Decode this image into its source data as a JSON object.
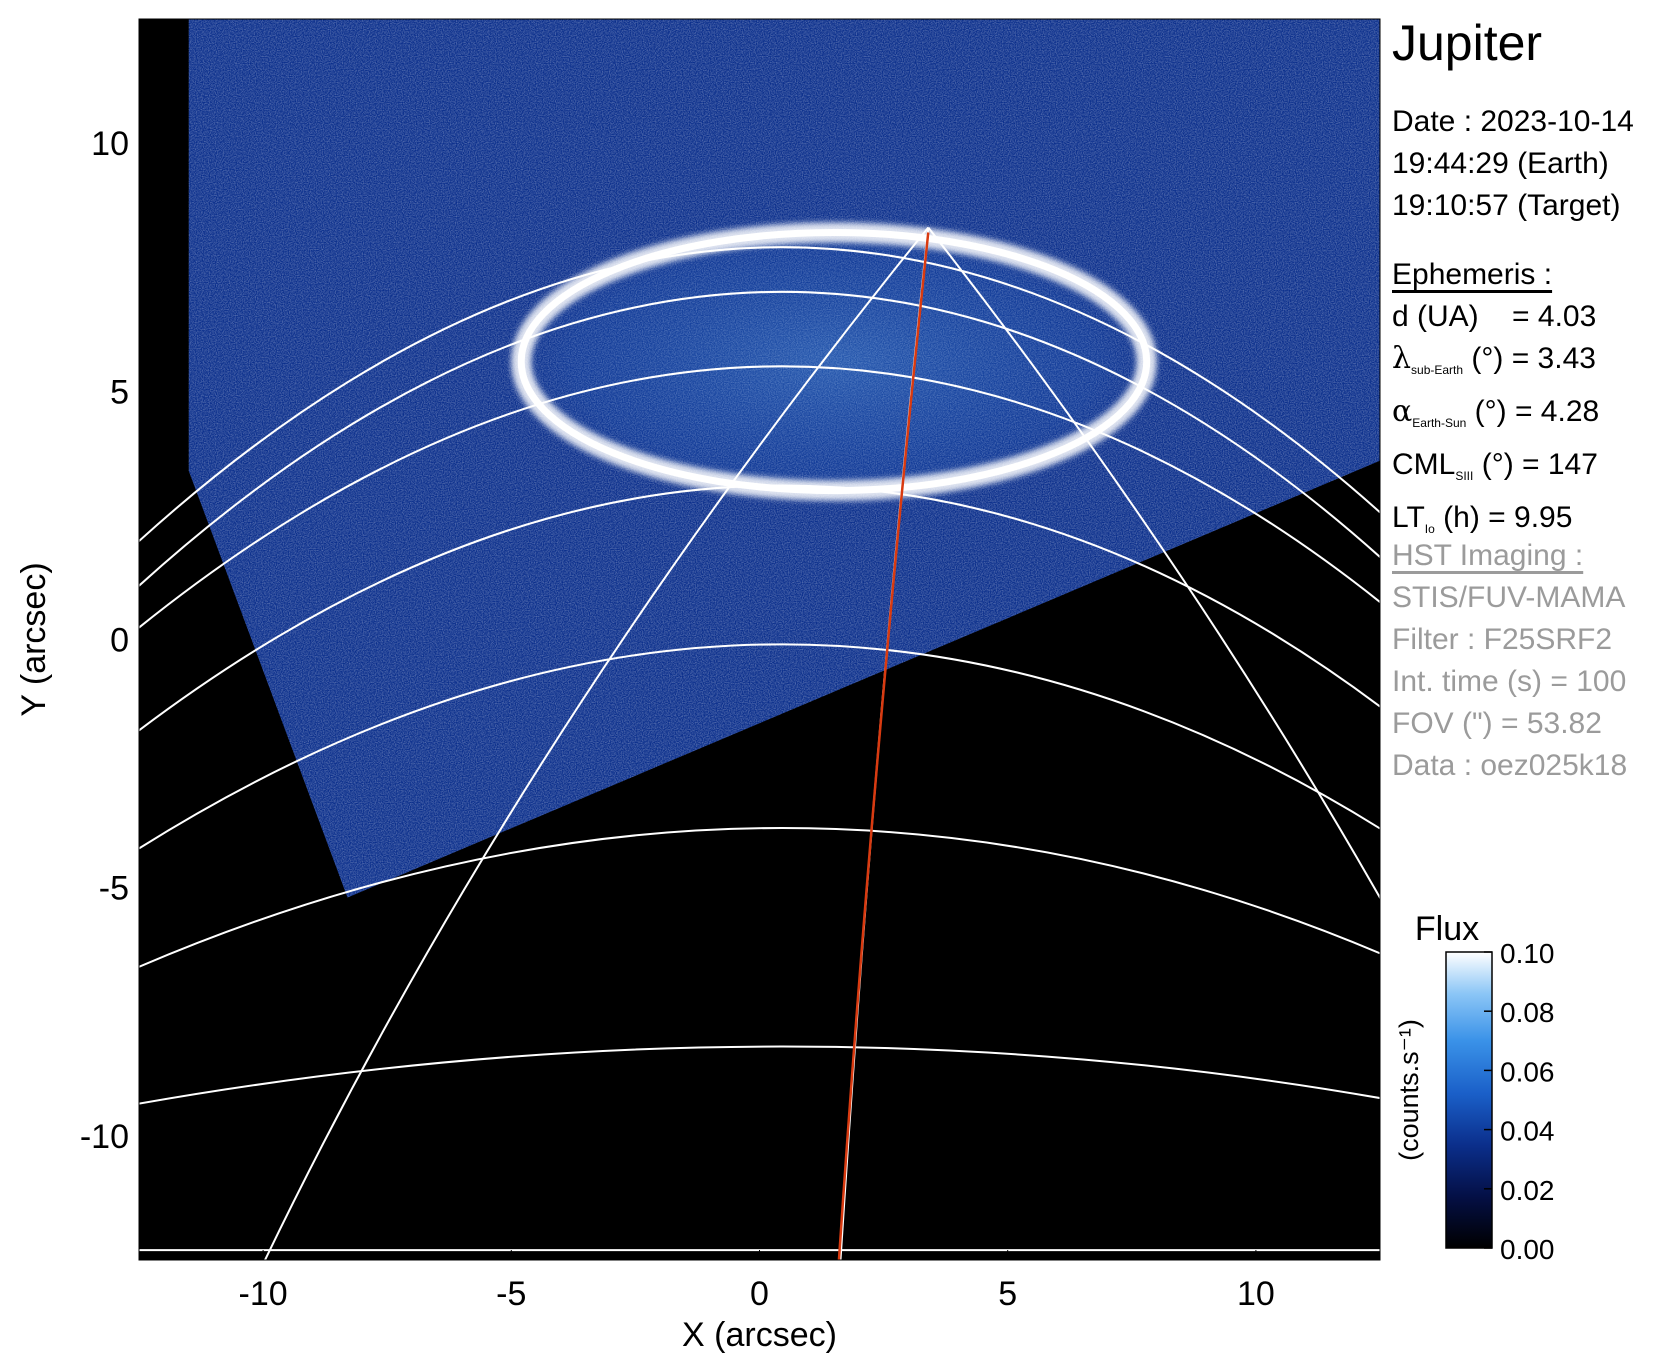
{
  "planet": "Jupiter",
  "date": {
    "date_line": "Date : 2023-10-14",
    "earth_time": "19:44:29 (Earth)",
    "target_time": "19:10:57 (Target)"
  },
  "ephemeris": {
    "header": "Ephemeris :",
    "d_label": "d (UA)",
    "d_value": "= 4.03",
    "lambda_sub": "sub-Earth",
    "lambda_rest": "(°) = 3.43",
    "alpha_sub": "Earth-Sun",
    "alpha_rest": "(°) = 4.28",
    "cml_label": "CML",
    "cml_sub": "SIII",
    "cml_rest": "(°) = 147",
    "lt_label": "LT",
    "lt_sub": "Io",
    "lt_rest": "(h) = 9.95"
  },
  "hst": {
    "header": "HST Imaging :",
    "instrument": "STIS/FUV-MAMA",
    "filter": "Filter : F25SRF2",
    "int_time": "Int. time (s) = 100",
    "fov": "FOV (\") = 53.82",
    "data_id": "Data : oez025k18"
  },
  "colors": {
    "background": "#000000",
    "grid": "#ffffff",
    "highlight_meridian": "#d93a10",
    "colormap": [
      "#000000",
      "#040f44",
      "#0b2f8c",
      "#1a5fc8",
      "#3a92e8",
      "#8cc6f6",
      "#ffffff"
    ]
  },
  "chart_data": {
    "type": "heatmap",
    "title": "",
    "xlabel": "X (arcsec)",
    "ylabel": "Y (arcsec)",
    "xlim": [
      -12.5,
      12.5
    ],
    "ylim": [
      -12.5,
      12.5
    ],
    "x_ticks": [
      -10,
      -5,
      0,
      5,
      10
    ],
    "y_ticks": [
      -10,
      -5,
      0,
      5,
      10
    ],
    "x_tick_labels": [
      "-10",
      "-5",
      "0",
      "5",
      "10"
    ],
    "y_tick_labels": [
      "-10",
      "-5",
      "0",
      "5",
      "10"
    ],
    "colorbar": {
      "title": "Flux",
      "label": "(counts.s⁻¹)",
      "range": [
        0.0,
        0.1
      ],
      "ticks": [
        0.0,
        0.02,
        0.04,
        0.06,
        0.08,
        0.1
      ],
      "tick_labels": [
        "0.00",
        "0.02",
        "0.04",
        "0.06",
        "0.08",
        "0.10"
      ]
    },
    "image_footprint": [
      [
        -8.3,
        -5.2
      ],
      [
        12.5,
        3.6
      ],
      [
        12.5,
        12.5
      ],
      [
        -11.5,
        12.5
      ],
      [
        -11.5,
        3.4
      ]
    ],
    "auroral_oval": {
      "center": [
        1.5,
        5.6
      ],
      "radii": [
        6.3,
        2.6
      ],
      "flux": 0.1
    },
    "latitude_circles": [
      {
        "y0": -12.3,
        "curve": 0.0
      },
      {
        "y0": -8.2,
        "curve": 0.07
      },
      {
        "y0": -3.8,
        "curve": 0.17
      },
      {
        "y0": -0.1,
        "curve": 0.25
      },
      {
        "y0": 3.1,
        "curve": 0.3
      },
      {
        "y0": 5.5,
        "curve": 0.32
      },
      {
        "y0": 7.0,
        "curve": 0.36
      },
      {
        "y0": 7.9,
        "curve": 0.36
      }
    ],
    "meridians_bottom_x": [
      -10.2,
      1.6,
      16.5
    ],
    "meridian_top_x": 3.4,
    "highlight_meridian": {
      "bottom": [
        1.6,
        -12.5
      ],
      "top": [
        3.4,
        8.2
      ]
    }
  }
}
